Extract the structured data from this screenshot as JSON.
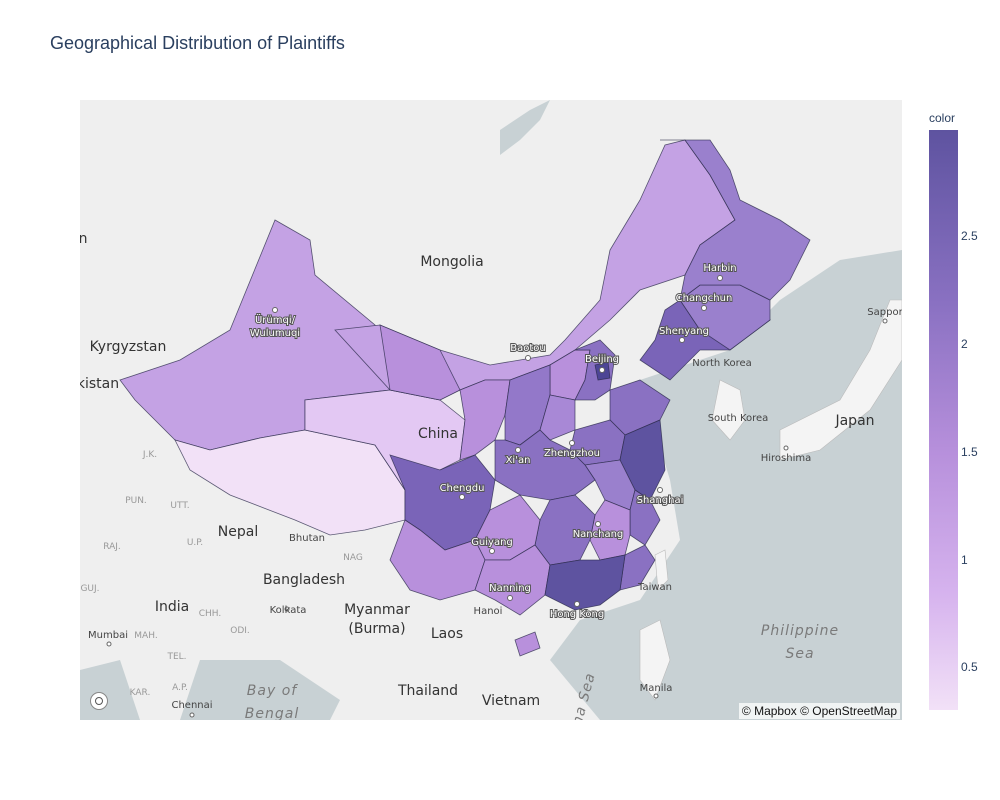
{
  "title": "Geographical Distribution of Plaintiffs",
  "colorbar": {
    "title": "color",
    "ticks": [
      "2.5",
      "2",
      "1.5",
      "1",
      "0.5"
    ],
    "range": [
      0.3,
      2.95
    ],
    "colors": [
      "#f2e1f7",
      "#d6b3ee",
      "#b68fdb",
      "#8a71c2",
      "#5e53a0"
    ]
  },
  "map": {
    "attribution": "© Mapbox © OpenStreetMap",
    "country_labels": [
      "Mongolia",
      "China",
      "Kyrgyzstan",
      "kistan",
      "Nepal",
      "Bhutan",
      "Bangladesh",
      "India",
      "Myanmar",
      "(Burma)",
      "Laos",
      "Thailand",
      "Vietnam",
      "North Korea",
      "South Korea",
      "Japan",
      "Taiwan",
      "n"
    ],
    "city_labels": [
      "Ürümqi/",
      "Wulumuqi",
      "Baotou",
      "Beijing",
      "Harbin",
      "Changchun",
      "Shenyang",
      "Xi'an",
      "Zhengzhou",
      "Chengdu",
      "Shanghai",
      "Nanchang",
      "Guiyang",
      "Nanning",
      "Hong Kong",
      "Hanoi",
      "Kolkata",
      "Mumbai",
      "Chennai",
      "Manila",
      "Hiroshima",
      "Sappor"
    ],
    "water_labels": [
      "Bay of",
      "Bengal",
      "Philippine",
      "Sea",
      "na Sea"
    ],
    "minor_labels": [
      "J.K.",
      "PUN.",
      "UTT.",
      "RAJ.",
      "U.P.",
      "NAG",
      "GUJ.",
      "CHH.",
      "ODI.",
      "MAH.",
      "TEL.",
      "KAR.",
      "A.P."
    ]
  }
}
